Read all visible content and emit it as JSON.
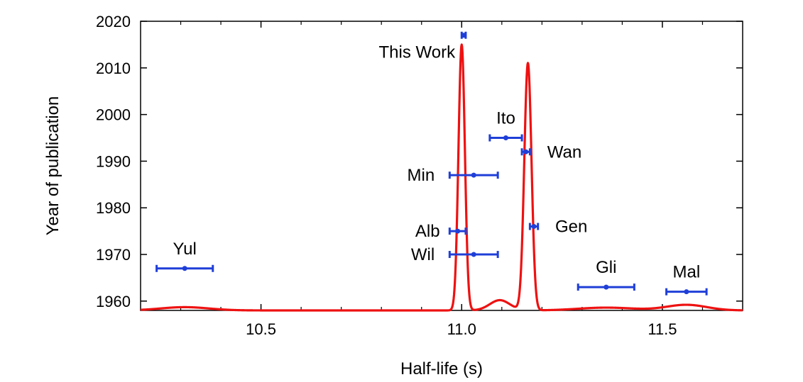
{
  "chart_data": {
    "type": "scatter",
    "xlabel": "Half-life (s)",
    "ylabel": "Year of publication",
    "xlim": [
      10.2,
      11.7
    ],
    "ylim": [
      1958,
      2020
    ],
    "x_ticks": [
      10.5,
      11.0,
      11.5
    ],
    "x_tick_labels": [
      "10.5",
      "11.0",
      "11.5"
    ],
    "y_ticks": [
      1960,
      1970,
      1980,
      1990,
      2000,
      2010,
      2020
    ],
    "y_tick_labels": [
      "1960",
      "1970",
      "1980",
      "1990",
      "2000",
      "2010",
      "2020"
    ],
    "grid": false,
    "measurements": [
      {
        "label": "Yul",
        "year": 1967,
        "value": 10.31,
        "xerr_low": 0.07,
        "xerr_high": 0.07
      },
      {
        "label": "Wil",
        "year": 1970,
        "value": 11.03,
        "xerr_low": 0.06,
        "xerr_high": 0.06
      },
      {
        "label": "Alb",
        "year": 1975,
        "value": 10.99,
        "xerr_low": 0.02,
        "xerr_high": 0.02
      },
      {
        "label": "Min",
        "year": 1987,
        "value": 11.03,
        "xerr_low": 0.06,
        "xerr_high": 0.06
      },
      {
        "label": "Ito",
        "year": 1995,
        "value": 11.11,
        "xerr_low": 0.04,
        "xerr_high": 0.04
      },
      {
        "label": "Wan",
        "year": 1992,
        "value": 11.16,
        "xerr_low": 0.01,
        "xerr_high": 0.01
      },
      {
        "label": "Gen",
        "year": 1976,
        "value": 11.18,
        "xerr_low": 0.01,
        "xerr_high": 0.01
      },
      {
        "label": "Gli",
        "year": 1963,
        "value": 11.36,
        "xerr_low": 0.07,
        "xerr_high": 0.07
      },
      {
        "label": "Mal",
        "year": 1962,
        "value": 11.56,
        "xerr_low": 0.05,
        "xerr_high": 0.05
      },
      {
        "label": "This Work",
        "year": 2017,
        "value": 11.005,
        "xerr_low": 0.005,
        "xerr_high": 0.005
      }
    ],
    "curve": {
      "baseline": 1958,
      "peaks": [
        {
          "center": 11.0,
          "sigma": 0.008,
          "height": 57
        },
        {
          "center": 11.165,
          "sigma": 0.009,
          "height": 53
        },
        {
          "center": 11.095,
          "sigma": 0.025,
          "height": 2.2
        },
        {
          "center": 10.31,
          "sigma": 0.06,
          "height": 0.7
        },
        {
          "center": 11.36,
          "sigma": 0.07,
          "height": 0.6
        },
        {
          "center": 11.56,
          "sigma": 0.05,
          "height": 1.2
        }
      ]
    },
    "colors": {
      "measurements": "#1f3fd8",
      "curve": "#ee1111",
      "axes": "#000000"
    }
  }
}
